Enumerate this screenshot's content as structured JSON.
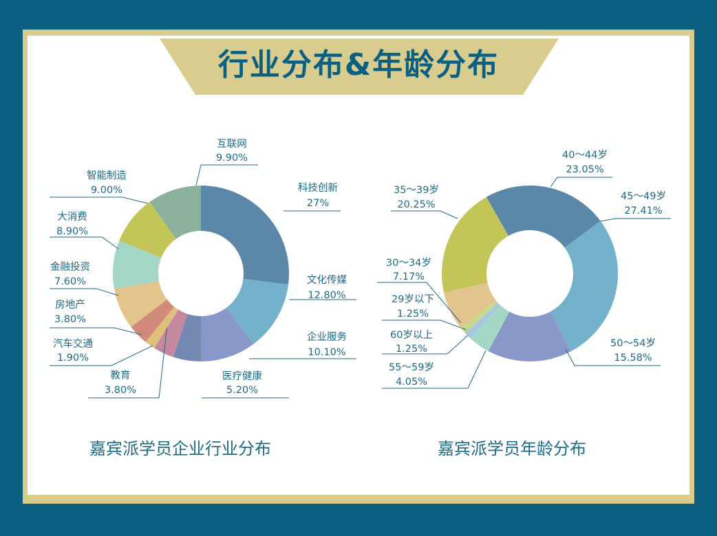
{
  "title": "行业分布&年龄分布",
  "colors": {
    "background": "#0b5f80",
    "frame": "#d8cc8f",
    "card": "#ffffff",
    "text": "#1c6a87"
  },
  "chart_data": [
    {
      "type": "pie",
      "variant": "donut",
      "title": "嘉宾派学员企业行业分布",
      "slices": [
        {
          "label": "科技创新",
          "value_label": "27%",
          "value": 27,
          "color": "#5b88a8"
        },
        {
          "label": "文化传媒",
          "value_label": "12.80%",
          "value": 12.8,
          "color": "#74b1cb"
        },
        {
          "label": "企业服务",
          "value_label": "10.10%",
          "value": 10.1,
          "color": "#8a98c9"
        },
        {
          "label": "医疗健康",
          "value_label": "5.20%",
          "value": 5.2,
          "color": "#7489b2"
        },
        {
          "label": "教育",
          "value_label": "3.80%",
          "value": 3.8,
          "color": "#c4889f"
        },
        {
          "label": "汽车交通",
          "value_label": "1.90%",
          "value": 1.9,
          "color": "#dfc07a"
        },
        {
          "label": "房地产",
          "value_label": "3.80%",
          "value": 3.8,
          "color": "#d28a7a"
        },
        {
          "label": "金融投资",
          "value_label": "7.60%",
          "value": 7.6,
          "color": "#e2c48c"
        },
        {
          "label": "大消费",
          "value_label": "8.90%",
          "value": 8.9,
          "color": "#a3d6c4"
        },
        {
          "label": "智能制造",
          "value_label": "9.00%",
          "value": 9.0,
          "color": "#c4c558"
        },
        {
          "label": "互联网",
          "value_label": "9.90%",
          "value": 9.9,
          "color": "#8bb09c"
        }
      ]
    },
    {
      "type": "pie",
      "variant": "donut",
      "title": "嘉宾派学员年龄分布",
      "slices": [
        {
          "label": "40～44岁",
          "value_label": "23.05%",
          "value": 23.05,
          "color": "#5b88a8"
        },
        {
          "label": "45～49岁",
          "value_label": "27.41%",
          "value": 27.41,
          "color": "#74b1cb"
        },
        {
          "label": "50～54岁",
          "value_label": "15.58%",
          "value": 15.58,
          "color": "#8a98c9"
        },
        {
          "label": "55～59岁",
          "value_label": "4.05%",
          "value": 4.05,
          "color": "#a3d6c4"
        },
        {
          "label": "60岁以上",
          "value_label": "1.25%",
          "value": 1.25,
          "color": "#a8c6dc"
        },
        {
          "label": "29岁以下",
          "value_label": "1.25%",
          "value": 1.25,
          "color": "#c7d98f"
        },
        {
          "label": "30～34岁",
          "value_label": "7.17%",
          "value": 7.17,
          "color": "#e2c48c"
        },
        {
          "label": "35～39岁",
          "value_label": "20.25%",
          "value": 20.25,
          "color": "#c4c558"
        }
      ]
    }
  ]
}
